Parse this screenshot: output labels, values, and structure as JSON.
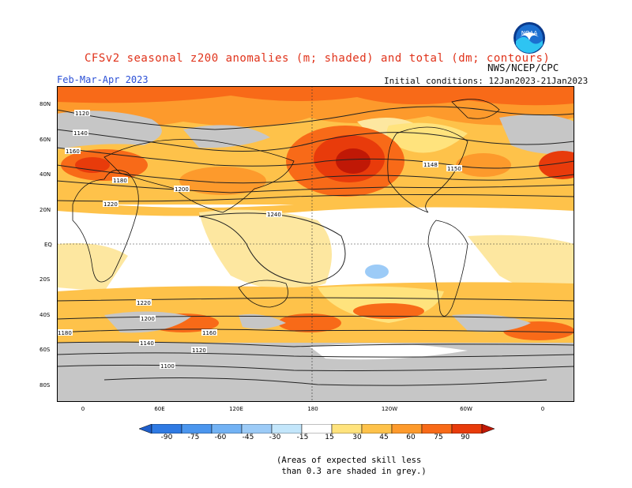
{
  "title": "CFSv2 seasonal z200 anomalies (m; shaded) and total (dm; contours)",
  "agency": "NWS/NCEP/CPC",
  "logo_text": "NOAA",
  "period": "Feb-Mar-Apr 2023",
  "initial_conditions": "Initial conditions: 12Jan2023-21Jan2023",
  "lat_labels": [
    "80N",
    "60N",
    "40N",
    "20N",
    "EQ",
    "20S",
    "40S",
    "60S",
    "80S"
  ],
  "lon_labels": [
    "0",
    "60E",
    "120E",
    "180",
    "120W",
    "60W",
    "0"
  ],
  "contour_labels": [
    "1120",
    "1140",
    "1160",
    "1180",
    "1200",
    "1220",
    "1240",
    "1220",
    "1200",
    "1180",
    "1160",
    "1140",
    "1120",
    "1100",
    "1148",
    "1150"
  ],
  "colorbar": {
    "levels": [
      "-90",
      "-75",
      "-60",
      "-45",
      "-30",
      "-15",
      "15",
      "30",
      "45",
      "60",
      "75",
      "90"
    ],
    "colors": [
      "#1e5ecb",
      "#2f7ae3",
      "#4b96ee",
      "#72b2f4",
      "#9ccbf7",
      "#c3e6fb",
      "#ffffff",
      "#ffe37d",
      "#fec24a",
      "#fd9a2c",
      "#f86a18",
      "#e83b0b",
      "#c01806"
    ],
    "grey_skill": "#c6c6c6"
  },
  "note": "(Areas of expected skill less\n than 0.3 are shaded in grey.)"
}
